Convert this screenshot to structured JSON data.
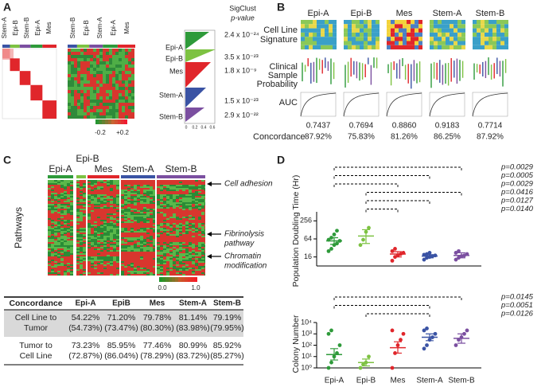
{
  "panels": {
    "A": {
      "label": "A",
      "columns1": [
        "Stem-A",
        "Epi-B",
        "Stem-B",
        "Epi-A",
        "Mes"
      ],
      "columns2": [
        "Stem-B",
        "Epi-B",
        "Stem-A",
        "Epi-A",
        "Mes"
      ],
      "colorbar": [
        "-0.2",
        "+0.2"
      ],
      "sigclust_title": "SigClust",
      "sigclust_subtitle": "p-value",
      "axis_ticks": [
        "0",
        "0.2",
        "0.4",
        "0.6"
      ],
      "rows": [
        {
          "name": "Epi-A",
          "p": "2.4 x 10⁻²⁴"
        },
        {
          "name": "Epi-B",
          "p": "3.5 x 10⁻²³"
        },
        {
          "name": "Mes",
          "p": "1.8 x 10⁻⁹"
        },
        {
          "name": "Stem-A",
          "p": "1.5 x 10⁻²³"
        },
        {
          "name": "Stem-B",
          "p": "2.9 x 10⁻²²"
        }
      ]
    },
    "B": {
      "label": "B",
      "groups": [
        "Epi-A",
        "Epi-B",
        "Mes",
        "Stem-A",
        "Stem-B"
      ],
      "signature_label": [
        "Cell Line",
        "Signature"
      ],
      "probability_label": [
        "Clinical",
        "Sample",
        "Probability"
      ],
      "auc_label": "AUC",
      "concordance_label": "Concordance",
      "auc": [
        "0.7437",
        "0.7694",
        "0.8860",
        "0.9183",
        "0.7714"
      ],
      "concordance": [
        "87.92%",
        "75.83%",
        "81.26%",
        "86.25%",
        "87.92%"
      ]
    },
    "C": {
      "label": "C",
      "groups": [
        "Epi-A",
        "Epi-B",
        "Mes",
        "Stem-A",
        "Stem-B"
      ],
      "ylabel": "Pathways",
      "colorbar": [
        "0.0",
        "1.0"
      ],
      "annotations": [
        [
          "Cell adhesion"
        ],
        [
          "Fibrinolysis",
          "pathway"
        ],
        [
          "Chromatin",
          "modification"
        ]
      ],
      "table": {
        "header": [
          "Concordance",
          "Epi-A",
          "EpiB",
          "Mes",
          "Stem-A",
          "Stem-B"
        ],
        "rows": [
          [
            [
              "Cell Line to",
              "Tumor"
            ],
            [
              "54.22%",
              "(54.73%)"
            ],
            [
              "71.20%",
              "(73.47%)"
            ],
            [
              "79.78%",
              "(80.30%)"
            ],
            [
              "81.14%",
              "(83.98%)"
            ],
            [
              "79.19%",
              "(79.95%)"
            ]
          ],
          [
            [
              "Tumor to",
              "Cell Line"
            ],
            [
              "73.23%",
              "(72.87%)"
            ],
            [
              "85.95%",
              "(86.04%)"
            ],
            [
              "77.46%",
              "(78.29%)"
            ],
            [
              "80.99%",
              "(83.72%)"
            ],
            [
              "85.92%",
              "(85.27%)"
            ]
          ]
        ]
      }
    },
    "D": {
      "label": "D",
      "categories": [
        "Epi-A",
        "Epi-B",
        "Mes",
        "Stem-A",
        "Stem-B"
      ],
      "colors": [
        "#2e9a3a",
        "#7dc242",
        "#e0262b",
        "#3a53a4",
        "#7b4fa0"
      ],
      "charts": [
        {
          "type": "strip",
          "ylabel": "Population Doubling Time (Hr)",
          "log_base": 2,
          "ylim": [
            8,
            512
          ],
          "yticks": [
            16,
            64,
            256
          ],
          "points": [
            [
              25,
              30,
              40,
              45,
              55,
              60,
              70,
              90,
              120
            ],
            [
              40,
              60,
              110,
              150
            ],
            [
              12,
              16,
              18,
              20,
              22,
              25,
              30
            ],
            [
              13,
              15,
              16,
              17,
              18,
              19,
              20,
              22
            ],
            [
              13,
              15,
              17,
              18,
              20,
              22,
              25
            ]
          ],
          "means": [
            55,
            80,
            20,
            17,
            18
          ],
          "lower": [
            42,
            45,
            16,
            15,
            15
          ],
          "upper": [
            70,
            130,
            24,
            19,
            22
          ],
          "comparisons": [
            {
              "pair": [
                0,
                4
              ],
              "label": "p=0.0029"
            },
            {
              "pair": [
                0,
                3
              ],
              "label": "p=0.0005"
            },
            {
              "pair": [
                0,
                2
              ],
              "label": "p=0.0029"
            },
            {
              "pair": [
                1,
                4
              ],
              "label": "p=0.0416"
            },
            {
              "pair": [
                1,
                3
              ],
              "label": "p=0.0127"
            },
            {
              "pair": [
                1,
                2
              ],
              "label": "p=0.0140"
            }
          ]
        },
        {
          "type": "strip",
          "ylabel": "Colony Number",
          "log_base": 10,
          "ylim": [
            1,
            10000
          ],
          "yticks": [
            {
              "value": 1,
              "label": "10⁰"
            },
            {
              "value": 10,
              "label": "10¹"
            },
            {
              "value": 100,
              "label": "10²"
            },
            {
              "value": 1000,
              "label": "10³"
            },
            {
              "value": 10000,
              "label": "10⁴"
            }
          ],
          "points": [
            [
              1,
              3,
              10,
              20,
              100,
              1000,
              2000
            ],
            [
              1,
              2,
              3,
              10
            ],
            [
              1,
              20,
              100,
              300,
              1000,
              2000
            ],
            [
              50,
              100,
              300,
              500,
              1000,
              2000,
              3000
            ],
            [
              100,
              300,
              500,
              1000,
              2000
            ]
          ],
          "means": [
            15,
            3,
            60,
            500,
            400
          ],
          "lower": [
            5,
            1.5,
            20,
            250,
            150
          ],
          "upper": [
            50,
            6,
            200,
            1000,
            1000
          ],
          "comparisons": [
            {
              "pair": [
                0,
                4
              ],
              "label": "p=0.0145"
            },
            {
              "pair": [
                0,
                3
              ],
              "label": "p=0.0051"
            },
            {
              "pair": [
                1,
                3
              ],
              "label": "p=0.0126"
            }
          ]
        }
      ]
    }
  }
}
